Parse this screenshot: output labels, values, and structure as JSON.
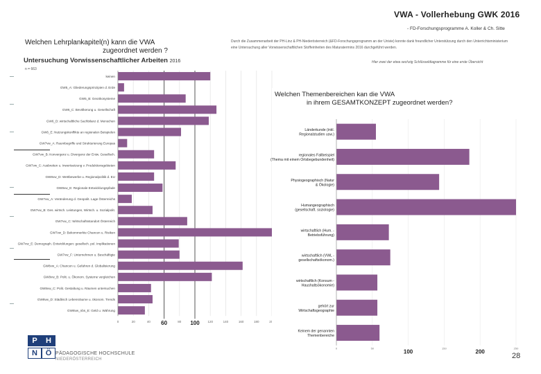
{
  "header": {
    "title": "VWA - Vollerhebung GWK 2016",
    "subtitle": "- FD-Forschungsprogramme A. Koller & Ch. Sitte"
  },
  "left_question": {
    "line1": "Welchen Lehrplankapitel(n) kann die VWA",
    "line2": "zugeordnet werden ?",
    "section": "Untersuchung Vorwissenschaftlicher Arbeiten",
    "section_year": "2016",
    "n_label": "n = 663"
  },
  "description": {
    "text": "Durch die Zusammenarbeit der PH-Linz & PH-Niederösterreich (&FD-Forschungsprogramm an der Univie) konnte dank freundlicher Unterstützung durch den Unterrichtsministerium eine Untersuchung aller Vorwissenschaftlichen Stoffeinheiten des Maturatermins 2016 durchgeführt werden.",
    "italic": "Hier zwei der etwa sechzig Schlüsseldiagramme für eine erste Übersicht"
  },
  "right_question": {
    "line1": "Welchen Themenbereichen kan die VWA",
    "line2": "in ihrem GESAMTKONZEPT zugeordnet werden?"
  },
  "footer": {
    "logo_letters": [
      "P",
      "H",
      "N",
      "Ö"
    ],
    "institution": "PÄDAGOGISCHE HOCHSCHULE",
    "institution_sub": "NIEDERÖSTERREICH",
    "page_number": "28"
  },
  "chart_data": [
    {
      "type": "bar",
      "orientation": "horizontal",
      "title": "Welchen Lehrplankapitel(n) kann die VWA zugeordnet werden ?",
      "categories": [
        "keinen",
        "GW5_A: Gliederungsprinzipien d. Erde",
        "GW5_B: Geoökosysteme",
        "GW6_C: Bevölkerung u. Gesellschaft",
        "GW6_D: wirtschaftliche Sachbilanz d. Menschen",
        "GW6_E: Nutzungskonflikte an regionalen Beispielen",
        "GW7vw_A: Raumbegriffe und Strukturierung Europas",
        "GW7vw_B: Konvergenz u. Divergenz der Entw. Gesellsch.",
        "GW7vw_C: Ausbreiten u. Inwertsetzung v. Produktionsgebieten",
        "GW8vw_D: Wettbewerbe u. Regionalpolitik d. EU",
        "GW8vw_E: Regionale Entwicklungspfade",
        "GW7vw_A: Veränderung d. Geopolit. Lage Österreichs",
        "GW7vw_B: Ges. wirtsch. Leistungen, Wirtsch. u. Sozialpolit.",
        "GW7vw_C: Wirtschaftsstandort Österreich",
        "GW7vw_D: Bekommerkte Chancen u. Risiken",
        "GW7vw_E: Demograph. Entwicklungen: gesellsch. pol. Implikationen",
        "GW7vw_F: Unternehmen u. Beschäftigte",
        "GW8vw_A: Chancen u. Gefahren d. Globalisierung",
        "GW8vw_B: Polit. u. Ökonom. Systeme vergleichen",
        "GW8vw_C: Polit. Gestaltung u. Räumen untersuchen",
        "GW8vw_D: Städtisch Lebensräume u. ökonom. Trends",
        "GW8vw_nbs_E: Geld u. Währung"
      ],
      "values": [
        120,
        8,
        88,
        128,
        118,
        82,
        12,
        47,
        75,
        47,
        58,
        18,
        45,
        90,
        200,
        79,
        80,
        162,
        122,
        43,
        45,
        35
      ],
      "xlim": [
        0,
        200
      ],
      "xticks": [
        0,
        20,
        40,
        60,
        80,
        100,
        120,
        140,
        160,
        180,
        200
      ],
      "highlight_ticks": [
        "60",
        "100"
      ],
      "reference_lines": [
        60,
        100
      ],
      "color": "#8b5a8f"
    },
    {
      "type": "bar",
      "orientation": "horizontal",
      "title": "Welchen Themenbereichen kan die VWA in ihrem GESAMTKONZEPT zugeordnet werden?",
      "categories": [
        "Länderkunde (inkl. Regionalstudien usw.)",
        "regionales Fallbeispiel (Thema mit einem Ortsbegebundenheit)",
        "Physiogeographisch (Natur & Ökologie)",
        "Humangeographisch (gesellschaft. soziologie)",
        "wirtschaftlich (Hum. - Betriebsführung)",
        "wirtschaftlich (VWL - gesellschaftsökonom.)",
        "wirtschaftlich (Konsum - Haushaltsökonomie)",
        "gehört zur Wirtschaftsgeographie",
        "Keinem der genannten Themenbereiche"
      ],
      "values": [
        55,
        185,
        143,
        250,
        73,
        75,
        57,
        57,
        60
      ],
      "xlim": [
        0,
        250
      ],
      "xticks": [
        0,
        50,
        100,
        150,
        200,
        250
      ],
      "highlight_ticks": [
        "100",
        "200"
      ],
      "color": "#8b5a8f"
    }
  ]
}
